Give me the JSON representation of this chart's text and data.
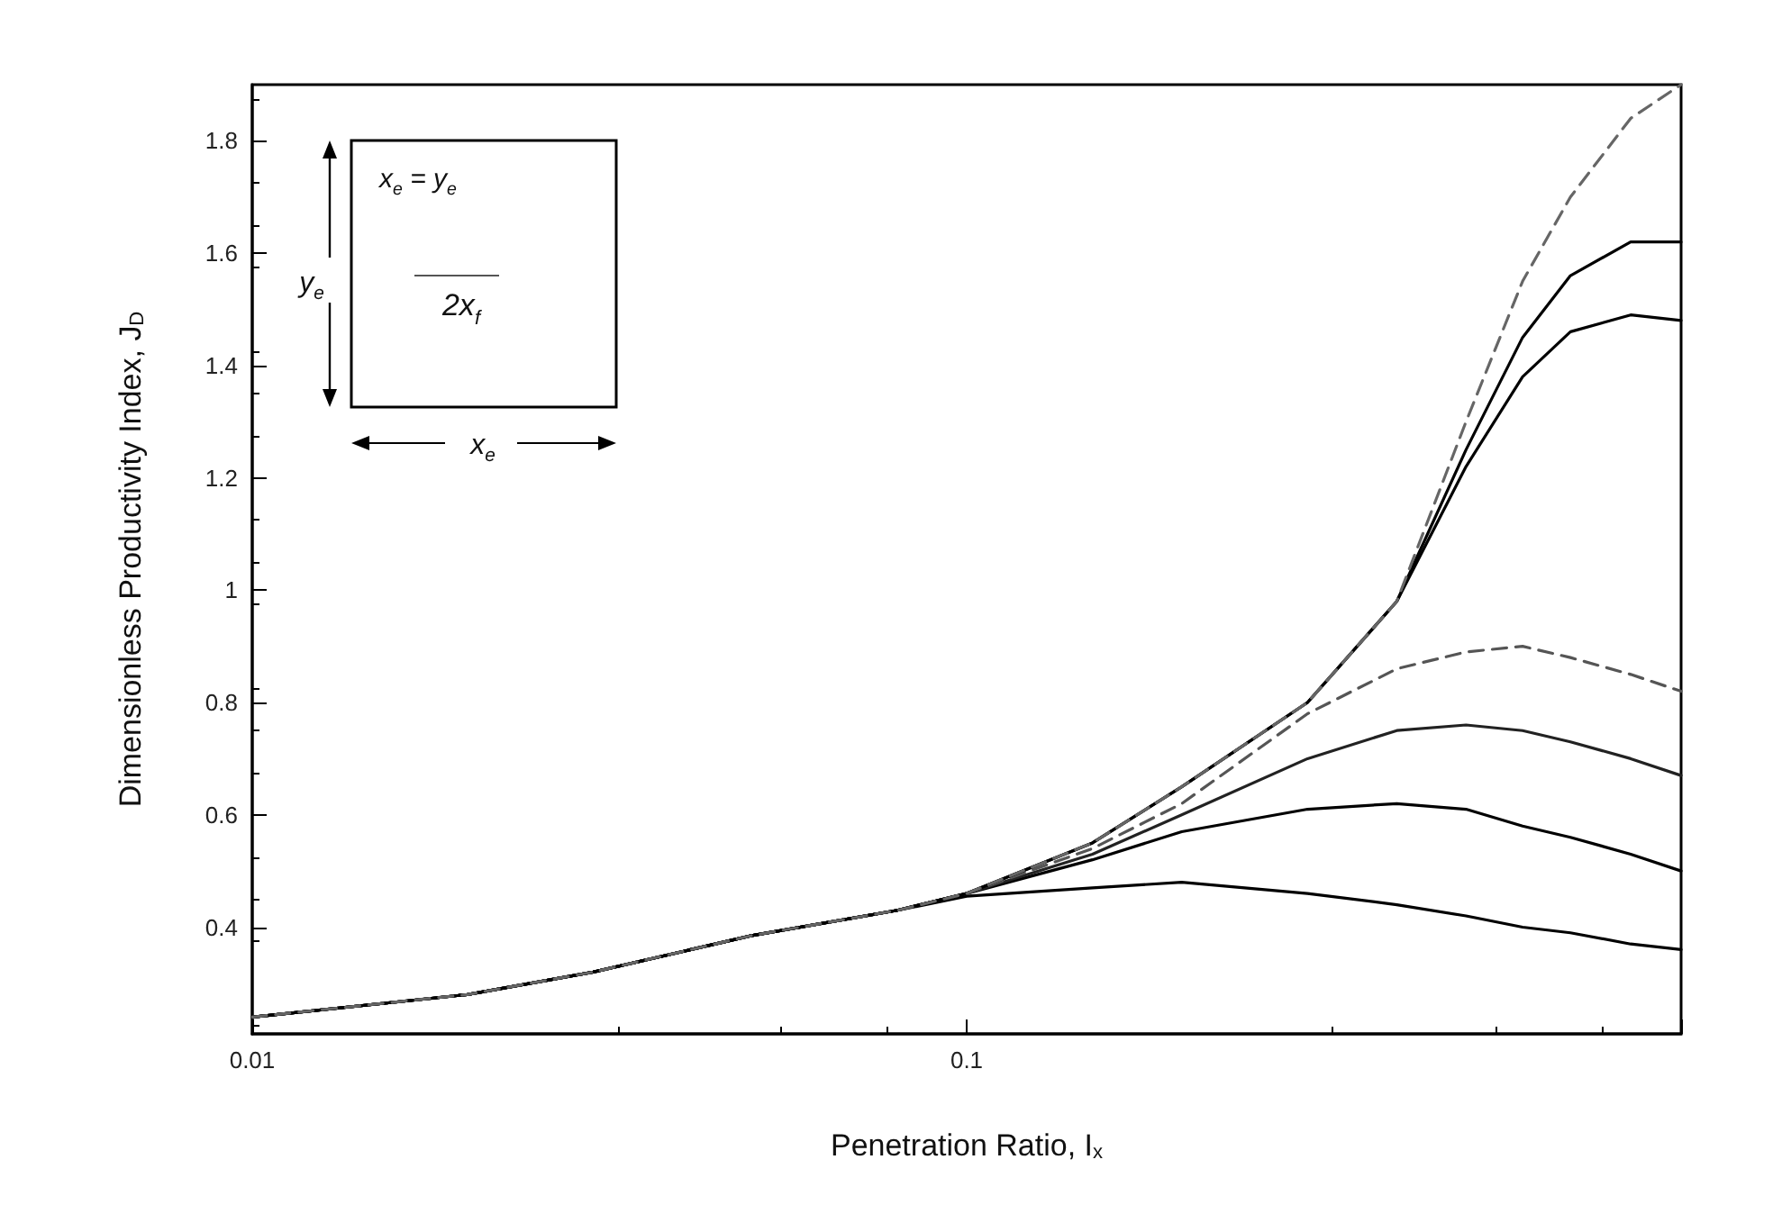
{
  "chart_data": {
    "type": "line",
    "xlabel": "Penetration Ratio, I$_{x}$",
    "ylabel": "Dimensionless Productivity Index, J$_{D}$",
    "log": "x",
    "xlim": [
      0.01,
      1
    ],
    "xticks": [
      0.01,
      0.1,
      {
        "value": 1,
        "label": null
      }
    ],
    "ylim": [
      0.21,
      1.9
    ],
    "yticks": [
      0.4,
      0.6,
      0.8,
      1.0,
      1.2,
      1.4,
      1.6,
      1.8
    ],
    "grid": false,
    "marker": "none",
    "annotations": [
      "x$_{e}$ = y$_{e}$",
      "y$_{e}$",
      "2x$_{f}$",
      "x$_{e}$"
    ],
    "x": [
      0.01,
      0.02,
      0.03,
      0.05,
      0.08,
      0.1,
      0.15,
      0.2,
      0.3,
      0.4,
      0.5,
      0.6,
      0.7,
      0.85,
      1
    ],
    "series": [
      {
        "color": "#000000",
        "line_style": "solid",
        "values": [
          0.24,
          0.28,
          0.32,
          0.385,
          0.43,
          0.455,
          0.47,
          0.48,
          0.46,
          0.44,
          0.42,
          0.4,
          0.39,
          0.37,
          0.36
        ]
      },
      {
        "color": "#000000",
        "line_style": "solid",
        "values": [
          0.24,
          0.28,
          0.32,
          0.385,
          0.43,
          0.46,
          0.52,
          0.57,
          0.61,
          0.62,
          0.61,
          0.58,
          0.56,
          0.53,
          0.5
        ]
      },
      {
        "color": "#222222",
        "line_style": "solid",
        "values": [
          0.24,
          0.28,
          0.32,
          0.385,
          0.43,
          0.46,
          0.53,
          0.6,
          0.7,
          0.75,
          0.76,
          0.75,
          0.73,
          0.7,
          0.67
        ]
      },
      {
        "color": "#555555",
        "line_style": "dashed",
        "values": [
          0.24,
          0.28,
          0.32,
          0.385,
          0.43,
          0.46,
          0.54,
          0.62,
          0.78,
          0.86,
          0.89,
          0.9,
          0.88,
          0.85,
          0.82
        ]
      },
      {
        "color": "#000000",
        "line_style": "solid",
        "values": [
          0.24,
          0.28,
          0.32,
          0.385,
          0.43,
          0.46,
          0.55,
          0.65,
          0.8,
          0.98,
          1.22,
          1.38,
          1.46,
          1.49,
          1.48
        ]
      },
      {
        "color": "#000000",
        "line_style": "solid",
        "values": [
          0.24,
          0.28,
          0.32,
          0.385,
          0.43,
          0.46,
          0.55,
          0.65,
          0.8,
          0.98,
          1.25,
          1.45,
          1.56,
          1.62,
          1.62
        ]
      },
      {
        "color": "#666666",
        "line_style": "dashed",
        "values": [
          0.24,
          0.28,
          0.32,
          0.385,
          0.43,
          0.46,
          0.55,
          0.65,
          0.8,
          0.98,
          1.3,
          1.55,
          1.7,
          1.84,
          1.9
        ]
      }
    ]
  }
}
